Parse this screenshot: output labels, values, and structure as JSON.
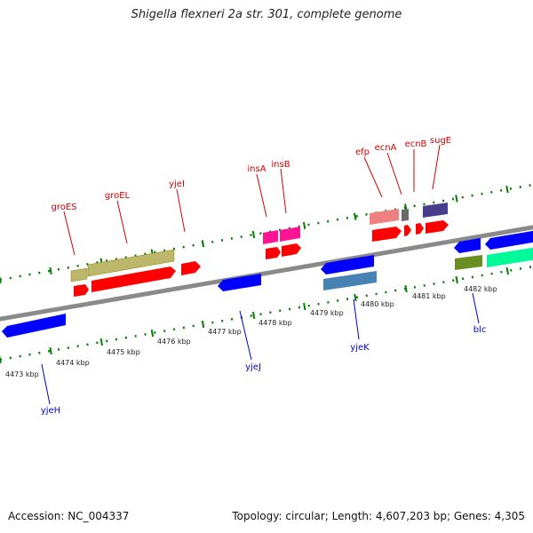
{
  "title": "Shigella flexneri 2a str. 301, complete genome",
  "footer": {
    "accession": "Accession: NC_004337",
    "summary": "Topology: circular; Length: 4,607,203 bp; Genes: 4,305"
  },
  "ruler_labels": [
    "4473 kbp",
    "4474 kbp",
    "4475 kbp",
    "4476 kbp",
    "4477 kbp",
    "4478 kbp",
    "4479 kbp",
    "4480 kbp",
    "4481 kbp",
    "4482 kbp"
  ],
  "gene_labels_top": [
    "groES",
    "groEL",
    "yjeI",
    "insA",
    "insB",
    "efp",
    "ecnA",
    "ecnB",
    "sugE"
  ],
  "gene_labels_bottom": [
    "yjeH",
    "yjeJ",
    "yjeK",
    "blc"
  ],
  "colors": {
    "cds": "#ff0000",
    "gene_olive": "#bdb76b",
    "gene_reverse": "#0000ff",
    "insertion": "#ff1493",
    "rna": "#f08080",
    "steelblue": "#4682b4",
    "darkslate": "#483d8b",
    "olive": "#6b8e23",
    "aquamarine": "#00fa9a",
    "gray": "#696969",
    "ruler_tick": "#008000",
    "label_top": "#d00000",
    "label_bottom": "#0000cc"
  }
}
